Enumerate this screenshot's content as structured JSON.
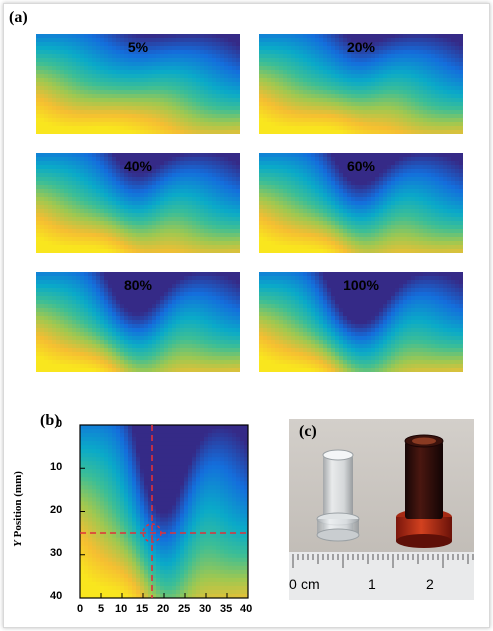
{
  "panels": {
    "a": "(a)",
    "b": "(b)",
    "c": "(c)"
  },
  "heatmaps": [
    {
      "label": "5%",
      "depth": 0.05
    },
    {
      "label": "20%",
      "depth": 0.2
    },
    {
      "label": "40%",
      "depth": 0.4
    },
    {
      "label": "60%",
      "depth": 0.6
    },
    {
      "label": "80%",
      "depth": 0.8
    },
    {
      "label": "100%",
      "depth": 1.0
    }
  ],
  "plot_b": {
    "ylabel_var": "Y",
    "ylabel_rest": "Position (mm)",
    "y_ticks": [
      "0",
      "10",
      "20",
      "30",
      "40"
    ],
    "x_ticks": [
      "0",
      "5",
      "10",
      "15",
      "20",
      "25",
      "30",
      "35",
      "40"
    ],
    "marker_color": "#e0303a"
  },
  "photo": {
    "ruler_labels": [
      "0",
      "cm",
      "1",
      "2"
    ]
  }
}
